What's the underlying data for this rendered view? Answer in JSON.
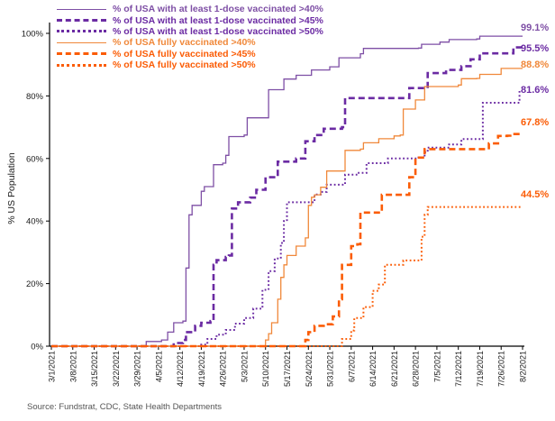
{
  "chart_data": {
    "type": "line",
    "subtype": "step",
    "title": "",
    "ylabel": "% US Population",
    "xlabel": "",
    "source": "Source: Fundstrat, CDC, State Health Departments",
    "grid": false,
    "legend_position": "top-left",
    "x_axis": {
      "unit": "date",
      "start_date": "3/1/2021",
      "end_date": "8/2/2021",
      "tick_labels": [
        "3/1/2021",
        "3/8/2021",
        "3/15/2021",
        "3/22/2021",
        "3/29/2021",
        "4/5/2021",
        "4/12/2021",
        "4/19/2021",
        "4/26/2021",
        "5/3/2021",
        "5/10/2021",
        "5/17/2021",
        "5/24/2021",
        "5/31/2021",
        "6/7/2021",
        "6/14/2021",
        "6/21/2021",
        "6/28/2021",
        "7/5/2021",
        "7/12/2021",
        "7/19/2021",
        "7/26/2021",
        "8/2/2021"
      ],
      "tick_days": [
        0,
        7,
        14,
        21,
        28,
        35,
        42,
        49,
        56,
        63,
        70,
        77,
        84,
        91,
        98,
        105,
        112,
        119,
        126,
        133,
        140,
        147,
        154
      ],
      "range_days": [
        0,
        154
      ]
    },
    "y_axis": {
      "tick_labels": [
        "0%",
        "20%",
        "40%",
        "60%",
        "80%",
        "100%"
      ],
      "tick_values": [
        0,
        20,
        40,
        60,
        80,
        100
      ],
      "ylim": [
        0,
        100
      ]
    },
    "series": [
      {
        "name": "% of USA with at least 1-dose vaccinated >40%",
        "color": "#7E4FA5",
        "style": "solid",
        "end_label": "99.1%",
        "end_value": 99.1,
        "points": [
          [
            0,
            0
          ],
          [
            30,
            0
          ],
          [
            31,
            1.5
          ],
          [
            36,
            2
          ],
          [
            38,
            4.5
          ],
          [
            40,
            7.5
          ],
          [
            43,
            8
          ],
          [
            44,
            25
          ],
          [
            45,
            42
          ],
          [
            46,
            45
          ],
          [
            49,
            49.5
          ],
          [
            50,
            51
          ],
          [
            53,
            58
          ],
          [
            56,
            58.5
          ],
          [
            57,
            61
          ],
          [
            58,
            67
          ],
          [
            63,
            67.5
          ],
          [
            64,
            73
          ],
          [
            70,
            73
          ],
          [
            71,
            82
          ],
          [
            76,
            85.4
          ],
          [
            80,
            86.6
          ],
          [
            85,
            88.3
          ],
          [
            91,
            89.3
          ],
          [
            94,
            92.2
          ],
          [
            101,
            93.5
          ],
          [
            102,
            95.2
          ],
          [
            120,
            95.3
          ],
          [
            121,
            96.5
          ],
          [
            127,
            97.2
          ],
          [
            130,
            98
          ],
          [
            139,
            98.2
          ],
          [
            140,
            99.1
          ],
          [
            154,
            99.1
          ]
        ]
      },
      {
        "name": "% of USA with at least 1-dose vaccinated >45%",
        "color": "#6B2BA3",
        "style": "dashed",
        "end_label": "95.5%",
        "end_value": 95.5,
        "points": [
          [
            0,
            0
          ],
          [
            38,
            0
          ],
          [
            40,
            1
          ],
          [
            43,
            2
          ],
          [
            44,
            4.5
          ],
          [
            47,
            6.5
          ],
          [
            49,
            7.5
          ],
          [
            52,
            8
          ],
          [
            53,
            26
          ],
          [
            54,
            27.5
          ],
          [
            57,
            28.5
          ],
          [
            58,
            29
          ],
          [
            59,
            44
          ],
          [
            61,
            46
          ],
          [
            65,
            47.5
          ],
          [
            67,
            50
          ],
          [
            70,
            54
          ],
          [
            74,
            59
          ],
          [
            80,
            60
          ],
          [
            83,
            65.5
          ],
          [
            86,
            67.5
          ],
          [
            89,
            69.5
          ],
          [
            95,
            70
          ],
          [
            96,
            79.3
          ],
          [
            116,
            79.3
          ],
          [
            117,
            82.5
          ],
          [
            122,
            82.5
          ],
          [
            123,
            87.3
          ],
          [
            129,
            88.3
          ],
          [
            134,
            89.5
          ],
          [
            137,
            91.7
          ],
          [
            140,
            93.6
          ],
          [
            150,
            93.6
          ],
          [
            151,
            95.5
          ],
          [
            154,
            95.5
          ]
        ]
      },
      {
        "name": "% of USA with at least 1-dose vaccinated >50%",
        "color": "#6B2BA3",
        "style": "dotted",
        "end_label": "81.6%",
        "end_value": 81.6,
        "points": [
          [
            0,
            0
          ],
          [
            48,
            0
          ],
          [
            49,
            0.5
          ],
          [
            51,
            2.3
          ],
          [
            54,
            3.7
          ],
          [
            57,
            5.2
          ],
          [
            60,
            7.2
          ],
          [
            63,
            9
          ],
          [
            66,
            12
          ],
          [
            69,
            18
          ],
          [
            71,
            24
          ],
          [
            73,
            28
          ],
          [
            75,
            33
          ],
          [
            76,
            40
          ],
          [
            77,
            46
          ],
          [
            83,
            46
          ],
          [
            86,
            48.5
          ],
          [
            88,
            49.3
          ],
          [
            90,
            51.6
          ],
          [
            96,
            54.8
          ],
          [
            100,
            55.4
          ],
          [
            103,
            58.5
          ],
          [
            110,
            60
          ],
          [
            120,
            60.3
          ],
          [
            122,
            62
          ],
          [
            123,
            63.5
          ],
          [
            130,
            64.5
          ],
          [
            134,
            66.2
          ],
          [
            140,
            66.2
          ],
          [
            141,
            77.8
          ],
          [
            152,
            77.8
          ],
          [
            153,
            81.6
          ],
          [
            154,
            81.6
          ]
        ]
      },
      {
        "name": "% of USA fully vaccinated >40%",
        "color": "#F0883A",
        "style": "solid",
        "end_label": "88.8%",
        "end_value": 88.8,
        "points": [
          [
            0,
            0
          ],
          [
            69,
            0
          ],
          [
            70,
            2
          ],
          [
            71,
            4
          ],
          [
            72,
            7.5
          ],
          [
            74,
            15
          ],
          [
            75,
            22
          ],
          [
            76,
            26
          ],
          [
            77,
            29
          ],
          [
            80,
            32
          ],
          [
            83,
            34.6
          ],
          [
            84,
            45
          ],
          [
            85,
            47.6
          ],
          [
            86,
            48.4
          ],
          [
            88,
            50.8
          ],
          [
            90,
            56
          ],
          [
            96,
            62.6
          ],
          [
            101,
            63
          ],
          [
            102,
            65
          ],
          [
            107,
            66.3
          ],
          [
            112,
            67.2
          ],
          [
            114,
            67.5
          ],
          [
            115,
            75.8
          ],
          [
            119,
            78.7
          ],
          [
            122,
            83
          ],
          [
            133,
            83.5
          ],
          [
            134,
            85.5
          ],
          [
            139,
            85.6
          ],
          [
            140,
            86.9
          ],
          [
            146,
            86.9
          ],
          [
            147,
            88.8
          ],
          [
            154,
            88.8
          ]
        ]
      },
      {
        "name": "% of USA fully vaccinated >45%",
        "color": "#FB5C05",
        "style": "dashed",
        "end_label": "67.8%",
        "end_value": 67.8,
        "points": [
          [
            0,
            0
          ],
          [
            82,
            0
          ],
          [
            83,
            2
          ],
          [
            84,
            4.5
          ],
          [
            86,
            6.5
          ],
          [
            89,
            7
          ],
          [
            92,
            9.5
          ],
          [
            94,
            15
          ],
          [
            95,
            26
          ],
          [
            98,
            32
          ],
          [
            100,
            32.6
          ],
          [
            101,
            42.7
          ],
          [
            107,
            42.7
          ],
          [
            108,
            48.4
          ],
          [
            116,
            48.4
          ],
          [
            117,
            54
          ],
          [
            119,
            60.3
          ],
          [
            122,
            63
          ],
          [
            142,
            63.3
          ],
          [
            143,
            64.8
          ],
          [
            146,
            67.2
          ],
          [
            149,
            67.3
          ],
          [
            150,
            67.8
          ],
          [
            154,
            67.8
          ]
        ]
      },
      {
        "name": "% of USA fully vaccinated >50%",
        "color": "#FB5C05",
        "style": "dotted",
        "end_label": "44.5%",
        "end_value": 44.5,
        "points": [
          [
            0,
            0
          ],
          [
            92,
            0
          ],
          [
            95,
            2.3
          ],
          [
            98,
            5
          ],
          [
            99,
            9
          ],
          [
            102,
            12.5
          ],
          [
            105,
            17.7
          ],
          [
            107,
            19.7
          ],
          [
            109,
            26
          ],
          [
            115,
            27.4
          ],
          [
            120,
            27.4
          ],
          [
            121,
            35
          ],
          [
            122,
            42
          ],
          [
            123,
            44.5
          ],
          [
            154,
            44.5
          ]
        ]
      }
    ]
  }
}
